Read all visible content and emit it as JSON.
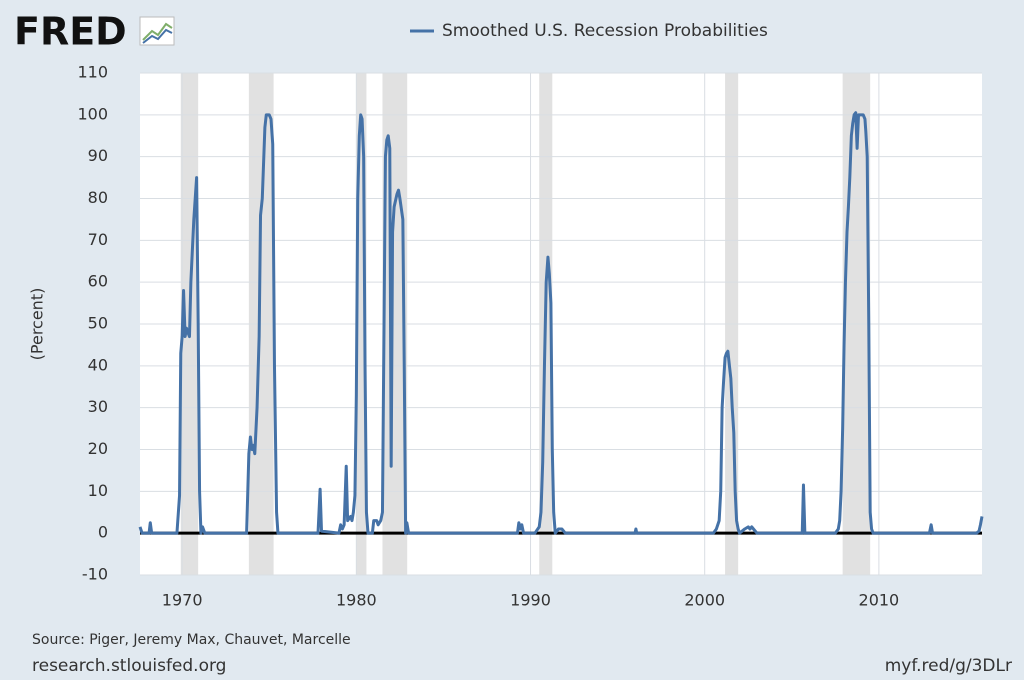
{
  "chart_data": {
    "type": "line",
    "logo": "FRED",
    "ylabel": "(Percent)",
    "source": "Source: Piger, Jeremy Max, Chauvet, Marcelle",
    "site": "research.stlouisfed.org",
    "short_url": "myf.red/g/3DLr",
    "legend": "top",
    "grid": true,
    "xlim": [
      1967.58,
      2015.92
    ],
    "ylim": [
      -10,
      110
    ],
    "xticks": [
      1970,
      1980,
      1990,
      2000,
      2010
    ],
    "yticks": [
      -10,
      0,
      10,
      20,
      30,
      40,
      50,
      60,
      70,
      80,
      90,
      100,
      110
    ],
    "recession_color": "#e1e1e1",
    "recessions": [
      [
        1969.92,
        1970.92
      ],
      [
        1973.83,
        1975.25
      ],
      [
        1980.0,
        1980.58
      ],
      [
        1981.5,
        1982.92
      ],
      [
        1990.5,
        1991.25
      ],
      [
        2001.17,
        2001.92
      ],
      [
        2007.92,
        2009.5
      ]
    ],
    "x": [
      1967.58,
      1967.7,
      1968.1,
      1968.17,
      1968.25,
      1969.7,
      1969.85,
      1969.92,
      1970.0,
      1970.08,
      1970.17,
      1970.25,
      1970.33,
      1970.42,
      1970.5,
      1970.67,
      1970.83,
      1970.92,
      1971.0,
      1971.08,
      1971.17,
      1971.3,
      1973.7,
      1973.83,
      1973.92,
      1974.0,
      1974.08,
      1974.17,
      1974.3,
      1974.42,
      1974.5,
      1974.6,
      1974.75,
      1974.83,
      1975.0,
      1975.1,
      1975.2,
      1975.3,
      1975.42,
      1975.5,
      1977.8,
      1977.92,
      1978.0,
      1979.0,
      1979.1,
      1979.2,
      1979.3,
      1979.42,
      1979.5,
      1979.67,
      1979.75,
      1979.83,
      1979.92,
      1980.0,
      1980.08,
      1980.17,
      1980.25,
      1980.33,
      1980.42,
      1980.5,
      1980.58,
      1980.67,
      1980.92,
      1981.0,
      1981.17,
      1981.25,
      1981.4,
      1981.5,
      1981.6,
      1981.67,
      1981.75,
      1981.83,
      1981.92,
      1982.0,
      1982.08,
      1982.17,
      1982.33,
      1982.42,
      1982.5,
      1982.67,
      1982.75,
      1982.83,
      1982.9,
      1983.0,
      1989.25,
      1989.33,
      1989.42,
      1989.5,
      1989.6,
      1990.25,
      1990.5,
      1990.6,
      1990.7,
      1990.8,
      1990.9,
      1991.0,
      1991.08,
      1991.17,
      1991.25,
      1991.33,
      1991.42,
      1991.6,
      1991.8,
      1992.0,
      1996.0,
      1996.05,
      1996.1,
      2000.5,
      2000.67,
      2000.83,
      2000.92,
      2001.0,
      2001.08,
      2001.17,
      2001.25,
      2001.33,
      2001.42,
      2001.5,
      2001.58,
      2001.67,
      2001.75,
      2001.83,
      2001.92,
      2002.0,
      2002.3,
      2002.5,
      2002.6,
      2002.7,
      2003.0,
      2005.6,
      2005.67,
      2005.75,
      2007.5,
      2007.67,
      2007.75,
      2007.83,
      2007.92,
      2008.0,
      2008.08,
      2008.17,
      2008.25,
      2008.33,
      2008.42,
      2008.5,
      2008.58,
      2008.67,
      2008.75,
      2008.83,
      2008.92,
      2009.0,
      2009.1,
      2009.2,
      2009.25,
      2009.33,
      2009.42,
      2009.5,
      2009.58,
      2009.67,
      2012.9,
      2013.0,
      2013.08,
      2015.6,
      2015.75,
      2015.83,
      2015.92
    ],
    "series": [
      {
        "name": "Smoothed U.S. Recession Probabilities",
        "color": "#4572a7",
        "values": [
          1.5,
          0,
          0,
          2.5,
          0,
          0,
          9,
          43,
          47,
          58,
          47,
          49,
          48,
          47,
          60,
          75,
          85,
          50,
          10,
          0,
          1.5,
          0,
          0,
          19,
          23,
          20,
          21,
          19,
          30,
          47,
          76,
          80,
          97,
          100,
          100,
          99,
          93,
          40,
          5,
          0,
          0,
          10.5,
          0.5,
          0,
          2,
          1,
          2,
          16,
          3,
          4,
          3,
          5,
          9,
          33,
          80,
          95,
          100,
          99,
          90,
          40,
          5,
          0,
          0,
          3,
          3,
          2,
          3,
          5,
          55,
          90,
          94,
          95,
          92,
          16,
          72,
          78,
          81,
          82,
          80,
          75,
          40,
          0,
          2.5,
          0,
          0,
          2.5,
          1,
          2,
          0,
          0,
          1.5,
          5,
          17,
          40,
          60,
          66,
          62,
          55,
          20,
          5,
          0,
          1,
          1,
          0,
          0,
          1,
          0,
          0,
          1,
          3,
          10,
          30,
          36,
          42,
          43,
          43.5,
          40,
          37,
          30,
          24,
          10,
          3,
          1,
          0,
          1,
          1.5,
          1,
          1.5,
          0,
          0,
          11.5,
          0,
          0,
          1,
          3,
          10,
          25,
          45,
          60,
          72,
          78,
          85,
          95,
          98,
          100,
          100.5,
          92,
          100,
          100,
          100,
          100,
          99,
          96,
          90,
          50,
          5,
          1,
          0,
          0,
          2,
          0,
          0,
          0.5,
          2,
          4
        ]
      }
    ]
  }
}
